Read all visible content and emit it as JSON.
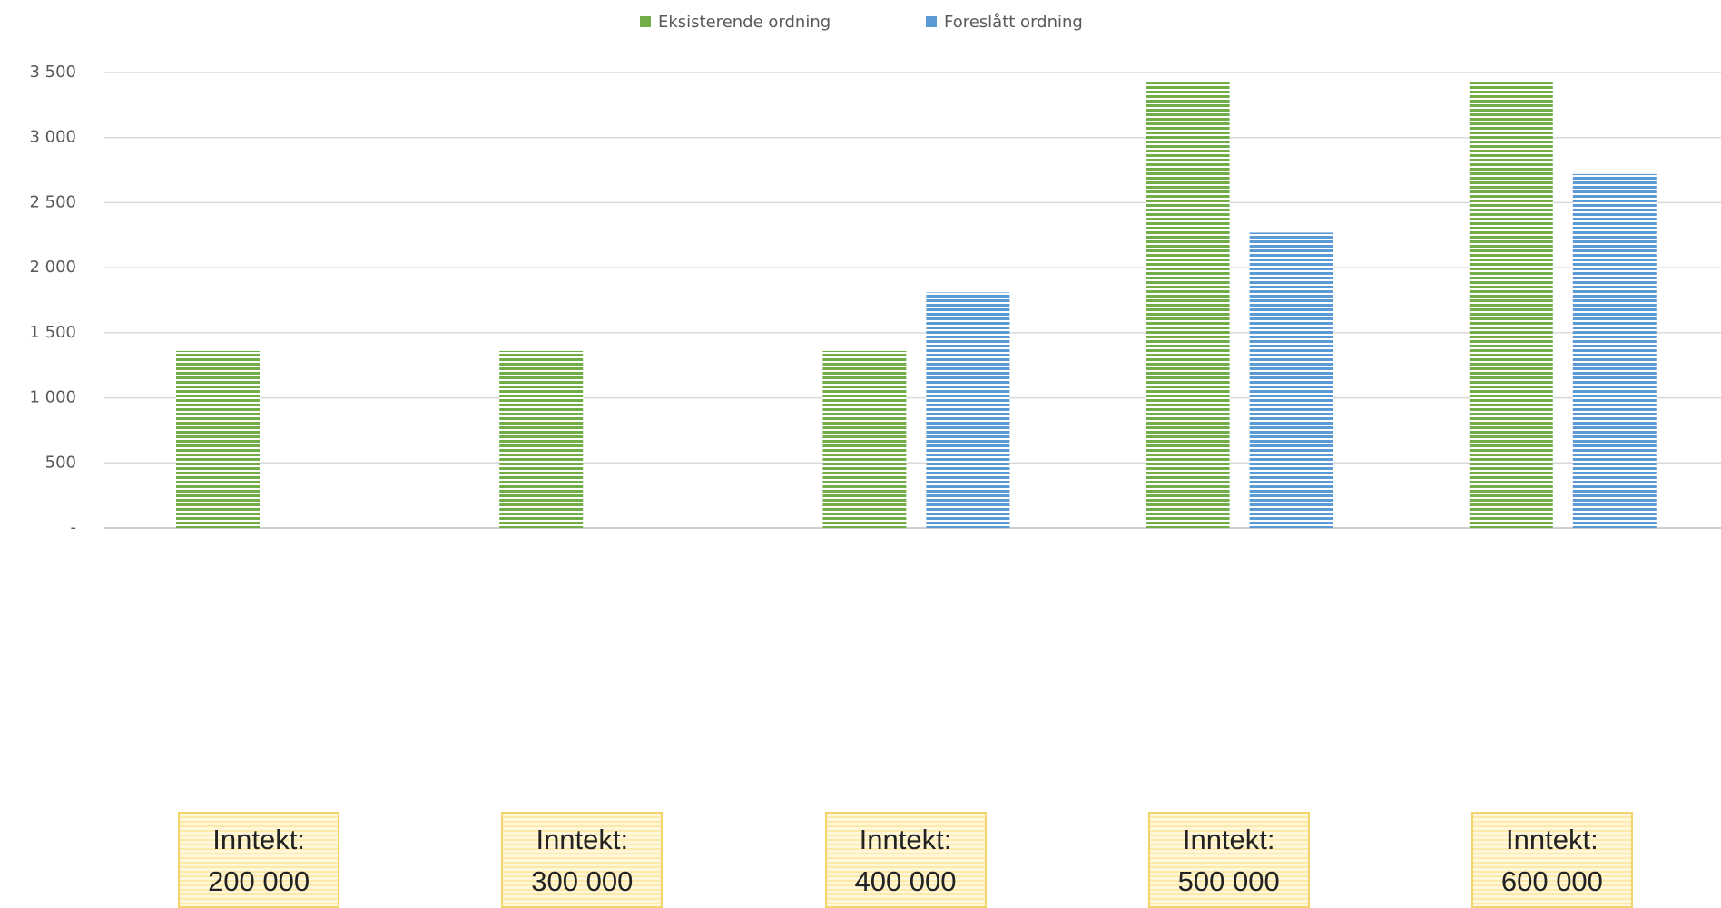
{
  "chart_data": {
    "type": "bar",
    "categories": [
      "Inntekt: 200 000",
      "Inntekt: 300 000",
      "Inntekt: 400 000",
      "Inntekt: 500 000",
      "Inntekt: 600 000"
    ],
    "series": [
      {
        "name": "Eksisterende ordning",
        "color": "#70ad47",
        "values": [
          1360,
          1360,
          1360,
          3430,
          3430
        ]
      },
      {
        "name": "Foreslått ordning",
        "color": "#5b9bd5",
        "values": [
          null,
          null,
          1810,
          2270,
          2720
        ]
      }
    ],
    "ylim": [
      0,
      3500
    ],
    "yticks": [
      {
        "value": 0,
        "label": "-"
      },
      {
        "value": 500,
        "label": "500"
      },
      {
        "value": 1000,
        "label": "1 000"
      },
      {
        "value": 1500,
        "label": "1 500"
      },
      {
        "value": 2000,
        "label": "2 000"
      },
      {
        "value": 2500,
        "label": "2 500"
      },
      {
        "value": 3000,
        "label": "3 000"
      },
      {
        "value": 3500,
        "label": "3 500"
      }
    ],
    "grid": true,
    "legend": "top"
  }
}
